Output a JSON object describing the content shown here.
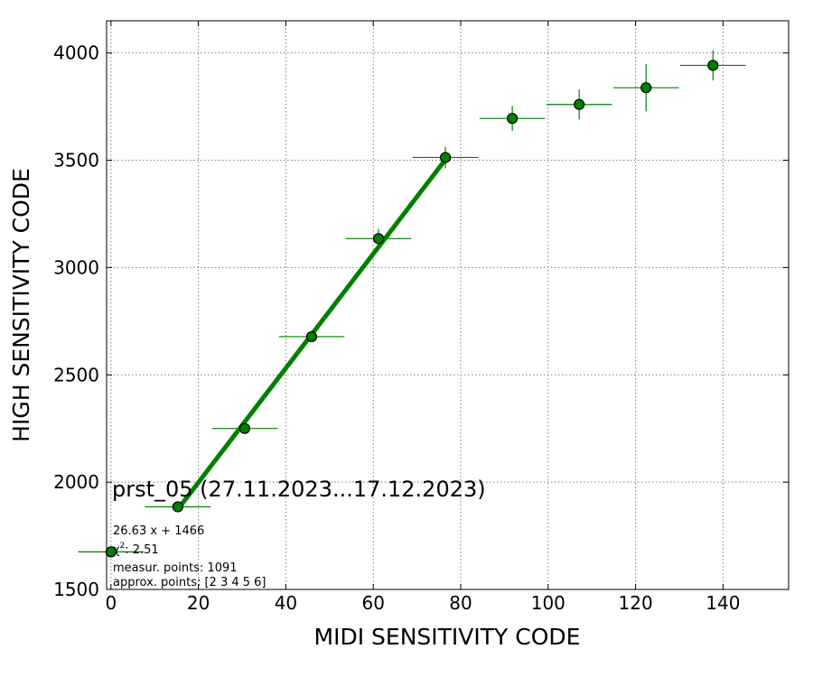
{
  "chart_data": {
    "type": "scatter",
    "title": "prst_05 (27.11.2023...17.12.2023)",
    "xlabel": "MIDI SENSITIVITY CODE",
    "ylabel": "HIGH SENSITIVITY CODE",
    "xlim": [
      -1,
      155
    ],
    "ylim": [
      1500,
      4150
    ],
    "x_ticks": [
      0,
      20,
      40,
      60,
      80,
      100,
      120,
      140
    ],
    "y_ticks": [
      1500,
      2000,
      2500,
      3000,
      3500,
      4000
    ],
    "grid": true,
    "colors": {
      "points": "#008000",
      "fit": "#008000",
      "marker_edge": "#000000"
    },
    "points": [
      {
        "x": 0,
        "y": 1675,
        "xerr": 7.5,
        "yerr": 10
      },
      {
        "x": 15.3,
        "y": 1885,
        "xerr": 7.5,
        "yerr": 12
      },
      {
        "x": 30.6,
        "y": 2250,
        "xerr": 7.5,
        "yerr": 15
      },
      {
        "x": 45.9,
        "y": 2678,
        "xerr": 7.5,
        "yerr": 25
      },
      {
        "x": 61.2,
        "y": 3135,
        "xerr": 7.5,
        "yerr": 45
      },
      {
        "x": 76.5,
        "y": 3513,
        "xerr": 7.5,
        "yerr": 50
      },
      {
        "x": 91.8,
        "y": 3695,
        "xerr": 7.5,
        "yerr": 58
      },
      {
        "x": 107.1,
        "y": 3760,
        "xerr": 7.5,
        "yerr": 70
      },
      {
        "x": 122.4,
        "y": 3838,
        "xerr": 7.5,
        "yerr": 110
      },
      {
        "x": 137.7,
        "y": 3942,
        "xerr": 7.5,
        "yerr": 70
      }
    ],
    "fit": {
      "slope": 26.63,
      "intercept": 1466,
      "x_range": [
        15.3,
        76.5
      ]
    },
    "annotations": {
      "equation": "26.63 x + 1466",
      "chi2_prefix": "χ",
      "chi2_power": "2",
      "chi2_value": ": 2.51",
      "measur_points": "measur. points: 1091",
      "approx_points": "approx. points: [2 3 4 5 6]"
    }
  }
}
